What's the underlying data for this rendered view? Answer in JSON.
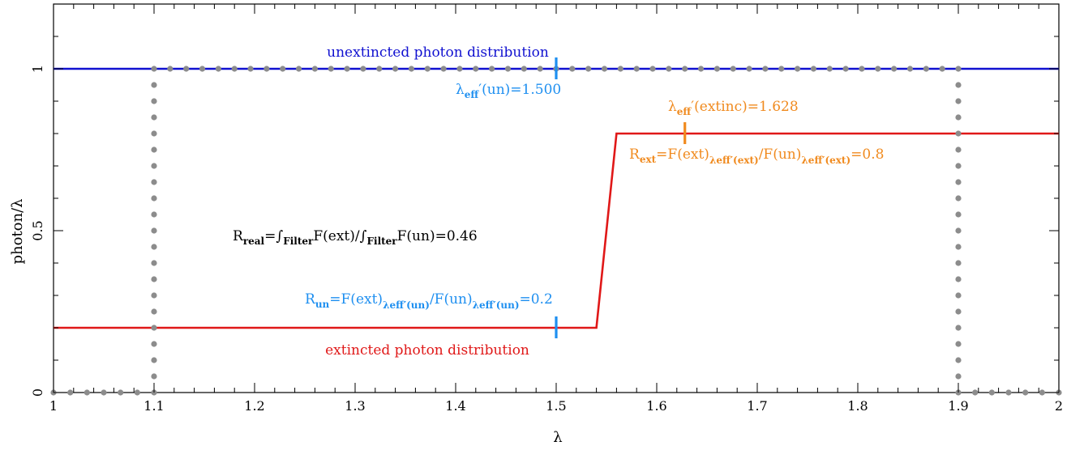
{
  "chart_data": {
    "type": "line",
    "xlabel": "λ",
    "ylabel": "photon/λ",
    "xlim": [
      1.0,
      2.0
    ],
    "ylim": [
      0.0,
      1.2
    ],
    "x_ticks": [
      1.0,
      1.1,
      1.2,
      1.3,
      1.4,
      1.5,
      1.6,
      1.7,
      1.8,
      1.9,
      2.0
    ],
    "x_tick_labels": [
      "1",
      "1.1",
      "1.2",
      "1.3",
      "1.4",
      "1.5",
      "1.6",
      "1.7",
      "1.8",
      "1.9",
      "2"
    ],
    "y_ticks": [
      0.0,
      0.5,
      1.0
    ],
    "y_tick_labels": [
      "0",
      "0.5",
      "1"
    ],
    "colors": {
      "unextincted": "#1010d0",
      "extincted": "#e01818",
      "filter": "#8c8c8c",
      "lambda_un": "#1e8ff0",
      "lambda_ext": "#f08a1e",
      "text": "#000000"
    },
    "series": [
      {
        "key": "unextincted",
        "x": [
          1.0,
          2.0
        ],
        "y": [
          1.0,
          1.0
        ]
      },
      {
        "key": "extincted",
        "x": [
          1.0,
          1.54,
          1.56,
          2.0
        ],
        "y": [
          0.2,
          0.2,
          0.8,
          0.8
        ]
      },
      {
        "key": "filter",
        "style": "dotted",
        "x": [
          1.0,
          1.1,
          1.1,
          1.9,
          1.9,
          2.0
        ],
        "y": [
          0.0,
          0.0,
          1.0,
          1.0,
          0.0,
          0.0
        ]
      }
    ],
    "markers": [
      {
        "key": "lambda_un",
        "x": 1.5,
        "y": 1.0
      },
      {
        "key": "lambda_un",
        "x": 1.5,
        "y": 0.2
      },
      {
        "key": "lambda_ext",
        "x": 1.628,
        "y": 0.8
      }
    ],
    "annotations": {
      "unextincted_label": "unextincted photon distribution",
      "extincted_label": "extincted photon distribution",
      "lambda_un": {
        "base": "λ",
        "sub": "eff",
        "rest": "′(un)=1.500"
      },
      "lambda_ext": {
        "base": "λ",
        "sub": "eff",
        "rest": "′(extinc)=1.628"
      },
      "r_ext": {
        "a": "R",
        "a_sub": "ext",
        "b": "=F(ext)",
        "b_sub": "λeff′(ext)",
        "c": "/F(un)",
        "c_sub": "λeff′(ext)",
        "d": "=0.8"
      },
      "r_un": {
        "a": "R",
        "a_sub": "un",
        "b": "=F(ext)",
        "b_sub": "λeff′(un)",
        "c": "/F(un)",
        "c_sub": "λeff′(un)",
        "d": "=0.2"
      },
      "r_real": {
        "a": "R",
        "a_sub": "real",
        "b": "=∫",
        "b_sub": "Filter",
        "c": "F(ext)/∫",
        "c_sub": "Filter",
        "d": "F(un)=0.46"
      }
    }
  }
}
